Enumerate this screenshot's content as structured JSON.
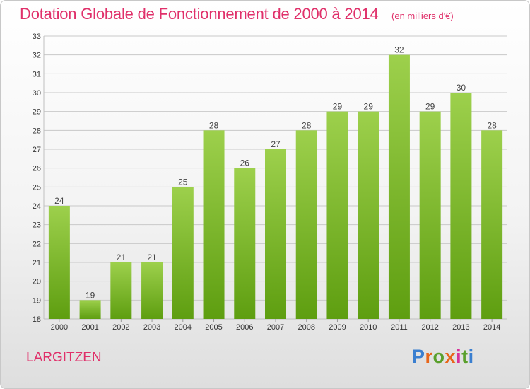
{
  "header": {
    "title": "Dotation Globale de Fonctionnement de 2000 à 2014",
    "subtitle": "(en milliers d'€)"
  },
  "footer": {
    "location": "LARGITZEN",
    "logo_text": "Proxiti",
    "logo_colors": [
      "#3a7fd0",
      "#e8661a",
      "#5aa02c",
      "#e8661a",
      "#d8309a",
      "#5aa02c",
      "#3a7fd0"
    ]
  },
  "colors": {
    "bar_top": "#9dd04c",
    "bar_bottom": "#5e9e10",
    "grid": "#c9c9c9",
    "axis_text": "#333333",
    "label_text": "#444444"
  },
  "chart_data": {
    "type": "bar",
    "title": "Dotation Globale de Fonctionnement de 2000 à 2014",
    "subtitle": "(en milliers d'€)",
    "categories": [
      "2000",
      "2001",
      "2002",
      "2003",
      "2004",
      "2005",
      "2006",
      "2007",
      "2008",
      "2009",
      "2010",
      "2011",
      "2012",
      "2013",
      "2014"
    ],
    "values": [
      24,
      19,
      21,
      21,
      25,
      28,
      26,
      27,
      28,
      29,
      29,
      32,
      29,
      30,
      28
    ],
    "ylim": [
      18,
      33
    ],
    "yticks": [
      18,
      19,
      20,
      21,
      22,
      23,
      24,
      25,
      26,
      27,
      28,
      29,
      30,
      31,
      32,
      33
    ],
    "grid": true,
    "data_labels": true,
    "xlabel": "",
    "ylabel": ""
  }
}
